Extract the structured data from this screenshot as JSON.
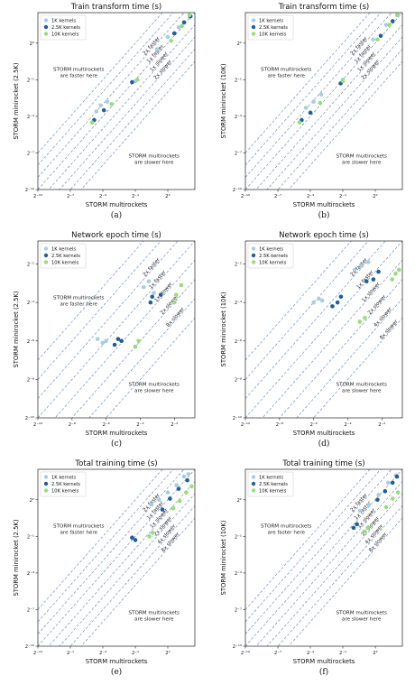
{
  "colors": {
    "k1": "#a6cee3",
    "k25": "#1f5f99",
    "k10": "#99dd7a",
    "guide": "#5b7fbf"
  },
  "chart_data": [
    {
      "type": "scatter",
      "panel": "a",
      "caption": "(a)",
      "title": "Train transform time (s)",
      "xlabel": "STORM multirockets",
      "ylabel": "STORM minirocket (2.5K)",
      "xlim": [
        -10,
        4.5
      ],
      "ylim": [
        -10,
        4.5
      ],
      "log_base": 2,
      "x_ticks": [
        "2⁻¹⁰",
        "2⁻⁷",
        "2⁻⁴",
        "2⁻¹",
        "2²"
      ],
      "tick_exps": [
        -10,
        -7,
        -4,
        -1,
        2
      ],
      "legend": [
        "1K kernels",
        "2.5K kernels",
        "10K kernels"
      ],
      "guides": [
        {
          "label": "2x faster",
          "offset": -1
        },
        {
          "label": "1x faster",
          "offset": 0
        },
        {
          "label": "1x slower",
          "offset": 1
        },
        {
          "label": "2x slower",
          "offset": 2
        }
      ],
      "extra_guides": [
        -3,
        -2,
        3,
        4
      ],
      "region_top": [
        "STORM multirockets",
        "are faster here"
      ],
      "region_bottom": [
        "STORM multirockets",
        "are slower here"
      ],
      "series": [
        {
          "name": "1K kernels",
          "color_key": "k1",
          "points": [
            [
              -4.6,
              -3.6
            ],
            [
              -4.2,
              -3.1
            ],
            [
              -3.6,
              -2.8
            ],
            [
              -1.0,
              -1.1
            ],
            [
              2.0,
              2.5
            ],
            [
              3.0,
              3.3
            ],
            [
              4.0,
              4.1
            ],
            [
              1.0,
              1.5
            ]
          ]
        },
        {
          "name": "2.5K kernels",
          "color_key": "k25",
          "points": [
            [
              -4.8,
              -4.3
            ],
            [
              -3.9,
              -3.5
            ],
            [
              -1.3,
              -1.2
            ],
            [
              2.6,
              2.8
            ],
            [
              3.5,
              3.7
            ],
            [
              4.1,
              4.2
            ]
          ]
        },
        {
          "name": "10K kernels",
          "color_key": "k10",
          "points": [
            [
              -5.0,
              -4.5
            ],
            [
              -3.2,
              -3.0
            ],
            [
              -0.8,
              -1.0
            ],
            [
              2.3,
              2.2
            ],
            [
              3.3,
              3.4
            ],
            [
              4.0,
              4.3
            ]
          ]
        }
      ]
    },
    {
      "type": "scatter",
      "panel": "b",
      "caption": "(b)",
      "title": "Train transform time (s)",
      "xlabel": "STORM multirockets",
      "ylabel": "STORM minirocket (10K)",
      "xlim": [
        -10,
        4.5
      ],
      "ylim": [
        -10,
        4.5
      ],
      "log_base": 2,
      "x_ticks": [
        "2⁻¹⁰",
        "2⁻⁷",
        "2⁻⁴",
        "2⁻¹",
        "2²"
      ],
      "tick_exps": [
        -10,
        -7,
        -4,
        -1,
        2
      ],
      "legend": [
        "1K kernels",
        "2.5K kernels",
        "10K kernels"
      ],
      "guides": [
        {
          "label": "2x faster",
          "offset": -1
        },
        {
          "label": "1x faster",
          "offset": 0
        },
        {
          "label": "1x slower",
          "offset": 1
        },
        {
          "label": "2x slower",
          "offset": 2
        }
      ],
      "extra_guides": [
        -3,
        -2,
        3,
        4
      ],
      "region_top": [
        "STORM multirockets",
        "are faster here"
      ],
      "region_bottom": [
        "STORM multirockets",
        "are slower here"
      ],
      "series": [
        {
          "name": "1K kernels",
          "color_key": "k1",
          "points": [
            [
              -4.4,
              -3.3
            ],
            [
              -3.7,
              -2.8
            ],
            [
              -3.0,
              -2.2
            ],
            [
              -1.0,
              -1.0
            ],
            [
              1.8,
              2.3
            ],
            [
              3.0,
              3.5
            ],
            [
              4.0,
              4.3
            ]
          ]
        },
        {
          "name": "2.5K kernels",
          "color_key": "k25",
          "points": [
            [
              -4.8,
              -4.3
            ],
            [
              -4.0,
              -3.7
            ],
            [
              -1.2,
              -1.3
            ],
            [
              2.5,
              2.6
            ],
            [
              3.6,
              3.8
            ]
          ]
        },
        {
          "name": "10K kernels",
          "color_key": "k10",
          "points": [
            [
              -5.0,
              -4.5
            ],
            [
              -3.1,
              -2.9
            ],
            [
              -1.0,
              -1.1
            ],
            [
              2.2,
              2.3
            ],
            [
              3.3,
              3.5
            ],
            [
              4.1,
              4.3
            ]
          ]
        }
      ]
    },
    {
      "type": "scatter",
      "panel": "c",
      "caption": "(c)",
      "title": "Network epoch time (s)",
      "xlabel": "STORM multirockets",
      "ylabel": "STORM minirocket (2.5K)",
      "xlim": [
        -10,
        -0.8
      ],
      "ylim": [
        -10,
        -0.8
      ],
      "log_base": 2,
      "x_ticks": [
        "2⁻¹⁰",
        "2⁻⁸",
        "2⁻⁶",
        "2⁻⁴",
        "2⁻²"
      ],
      "tick_exps": [
        -10,
        -8,
        -6,
        -4,
        -2
      ],
      "legend": [
        "1K kernels",
        "2.5K kernels",
        "10K kernels"
      ],
      "guides": [
        {
          "label": "2x faster",
          "offset": -1
        },
        {
          "label": "1x faster",
          "offset": 0
        },
        {
          "label": "1x slower",
          "offset": 1
        },
        {
          "label": "2x slower",
          "offset": 2
        },
        {
          "label": "8x slower",
          "offset": 3
        }
      ],
      "extra_guides": [
        -3,
        -2,
        4
      ],
      "region_top": [
        "STORM multirockets",
        "are faster here"
      ],
      "region_bottom": [
        "STORM multirockets",
        "are slower here"
      ],
      "series": [
        {
          "name": "1K kernels",
          "color_key": "k1",
          "points": [
            [
              -6.5,
              -5.9
            ],
            [
              -6.2,
              -6.1
            ],
            [
              -6.0,
              -6.0
            ],
            [
              -3.8,
              -3.2
            ],
            [
              -3.5,
              -2.9
            ],
            [
              -3.2,
              -3.5
            ]
          ]
        },
        {
          "name": "2.5K kernels",
          "color_key": "k25",
          "points": [
            [
              -5.5,
              -6.2
            ],
            [
              -5.3,
              -5.9
            ],
            [
              -5.1,
              -6.0
            ],
            [
              -3.4,
              -4.0
            ],
            [
              -3.3,
              -3.7
            ],
            [
              -2.8,
              -3.6
            ]
          ]
        },
        {
          "name": "10K kernels",
          "color_key": "k10",
          "points": [
            [
              -4.3,
              -6.3
            ],
            [
              -4.1,
              -6.0
            ],
            [
              -2.0,
              -4.0
            ],
            [
              -1.9,
              -3.6
            ],
            [
              -1.6,
              -3.1
            ]
          ]
        }
      ]
    },
    {
      "type": "scatter",
      "panel": "d",
      "caption": "(d)",
      "title": "Network epoch time (s)",
      "xlabel": "STORM multirockets",
      "ylabel": "STORM minirocket (10K)",
      "xlim": [
        -10,
        -0.8
      ],
      "ylim": [
        -10,
        -0.8
      ],
      "log_base": 2,
      "x_ticks": [
        "2⁻¹⁰",
        "2⁻⁸",
        "2⁻⁶",
        "2⁻⁴",
        "2⁻²"
      ],
      "tick_exps": [
        -10,
        -8,
        -6,
        -4,
        -2
      ],
      "legend": [
        "1K kernels",
        "2.5K kernels",
        "10K kernels"
      ],
      "guides": [
        {
          "label": "2x faster",
          "offset": -1
        },
        {
          "label": "1x faster",
          "offset": 0
        },
        {
          "label": "1x slower",
          "offset": 1
        },
        {
          "label": "2x slower",
          "offset": 2
        },
        {
          "label": "4x slower",
          "offset": 3
        },
        {
          "label": "8x slower",
          "offset": 4
        }
      ],
      "extra_guides": [
        -3,
        -2
      ],
      "region_top": [],
      "region_bottom": [
        "STORM multirockets",
        "are slower here"
      ],
      "series": [
        {
          "name": "1K kernels",
          "color_key": "k1",
          "points": [
            [
              -6.0,
              -4.0
            ],
            [
              -5.7,
              -3.8
            ],
            [
              -5.5,
              -3.9
            ],
            [
              -3.6,
              -2.3
            ],
            [
              -3.2,
              -2.1
            ],
            [
              -2.8,
              -1.9
            ]
          ]
        },
        {
          "name": "2.5K kernels",
          "color_key": "k25",
          "points": [
            [
              -4.9,
              -4.2
            ],
            [
              -4.6,
              -4.0
            ],
            [
              -4.4,
              -3.7
            ],
            [
              -2.9,
              -2.9
            ],
            [
              -2.5,
              -2.8
            ],
            [
              -2.2,
              -2.4
            ]
          ]
        },
        {
          "name": "10K kernels",
          "color_key": "k10",
          "points": [
            [
              -3.3,
              -5.0
            ],
            [
              -3.0,
              -4.8
            ],
            [
              -1.4,
              -2.8
            ],
            [
              -1.2,
              -2.5
            ],
            [
              -1.0,
              -2.3
            ]
          ]
        }
      ]
    },
    {
      "type": "scatter",
      "panel": "e",
      "caption": "(e)",
      "title": "Total training time (s)",
      "xlabel": "STORM multirockets",
      "ylabel": "STORM minirocket (2.5K)",
      "xlim": [
        -10,
        4.5
      ],
      "ylim": [
        -10,
        4.5
      ],
      "log_base": 2,
      "x_ticks": [
        "2⁻¹⁰",
        "2⁻⁷",
        "2⁻⁴",
        "2⁻¹",
        "2²"
      ],
      "tick_exps": [
        -10,
        -7,
        -4,
        -1,
        2
      ],
      "legend": [
        "1K kernels",
        "2.5K kernels",
        "10K kernels"
      ],
      "guides": [
        {
          "label": "2x faster",
          "offset": -1
        },
        {
          "label": "1x faster",
          "offset": 0
        },
        {
          "label": "1x slower",
          "offset": 1
        },
        {
          "label": "2x slower",
          "offset": 2
        },
        {
          "label": "4x slower",
          "offset": 3
        },
        {
          "label": "8x slower",
          "offset": 4
        }
      ],
      "extra_guides": [
        -3,
        -2
      ],
      "region_top": [
        "STORM multirockets",
        "are faster here"
      ],
      "region_bottom": [
        "STORM multirockets",
        "are slower here"
      ],
      "series": [
        {
          "name": "1K kernels",
          "color_key": "k1",
          "points": [
            [
              0.5,
              1.6
            ],
            [
              1.2,
              2.0
            ],
            [
              2.0,
              2.6
            ],
            [
              2.8,
              3.2
            ],
            [
              3.5,
              3.9
            ],
            [
              3.9,
              4.1
            ]
          ]
        },
        {
          "name": "2.5K kernels",
          "color_key": "k25",
          "points": [
            [
              -1.3,
              -1.1
            ],
            [
              -1.0,
              -1.3
            ],
            [
              1.5,
              1.2
            ],
            [
              2.2,
              2.1
            ],
            [
              3.0,
              2.9
            ],
            [
              3.8,
              3.6
            ]
          ]
        },
        {
          "name": "10K kernels",
          "color_key": "k10",
          "points": [
            [
              0.3,
              -1.0
            ],
            [
              0.6,
              -0.7
            ],
            [
              2.5,
              1.3
            ],
            [
              3.1,
              1.9
            ],
            [
              3.7,
              2.6
            ],
            [
              4.2,
              3.1
            ]
          ]
        }
      ]
    },
    {
      "type": "scatter",
      "panel": "f",
      "caption": "(f)",
      "title": "Total training time (s)",
      "xlabel": "STORM multirockets",
      "ylabel": "STORM minirocket (10K)",
      "xlim": [
        -10,
        4.5
      ],
      "ylim": [
        -10,
        4.5
      ],
      "log_base": 2,
      "x_ticks": [
        "2⁻¹⁰",
        "2⁻⁷",
        "2⁻⁴",
        "2⁻¹",
        "2²"
      ],
      "tick_exps": [
        -10,
        -7,
        -4,
        -1,
        2
      ],
      "legend": [
        "1K kernels",
        "2.5K kernels",
        "10K kernels"
      ],
      "guides": [
        {
          "label": "2x faster",
          "offset": -1
        },
        {
          "label": "1x faster",
          "offset": 0
        },
        {
          "label": "1x slower",
          "offset": 1
        },
        {
          "label": "2x slower",
          "offset": 2
        },
        {
          "label": "4x slower",
          "offset": 3
        },
        {
          "label": "8x slower",
          "offset": 4
        }
      ],
      "extra_guides": [
        -3,
        -2
      ],
      "region_top": [
        "STORM multirockets",
        "are faster here"
      ],
      "region_bottom": [
        "STORM multirockets",
        "are slower here"
      ],
      "series": [
        {
          "name": "1K kernels",
          "color_key": "k1",
          "points": [
            [
              0.6,
              1.1
            ],
            [
              1.4,
              1.6
            ],
            [
              2.3,
              2.4
            ],
            [
              3.2,
              3.4
            ],
            [
              3.9,
              4.0
            ]
          ]
        },
        {
          "name": "2.5K kernels",
          "color_key": "k25",
          "points": [
            [
              0.0,
              -0.3
            ],
            [
              0.3,
              0.0
            ],
            [
              2.2,
              2.0
            ],
            [
              2.9,
              2.7
            ],
            [
              3.6,
              3.4
            ],
            [
              4.0,
              3.9
            ]
          ]
        },
        {
          "name": "10K kernels",
          "color_key": "k10",
          "points": [
            [
              1.0,
              -0.6
            ],
            [
              1.3,
              -0.3
            ],
            [
              3.0,
              1.4
            ],
            [
              3.6,
              2.1
            ],
            [
              4.1,
              2.6
            ]
          ]
        }
      ]
    }
  ]
}
